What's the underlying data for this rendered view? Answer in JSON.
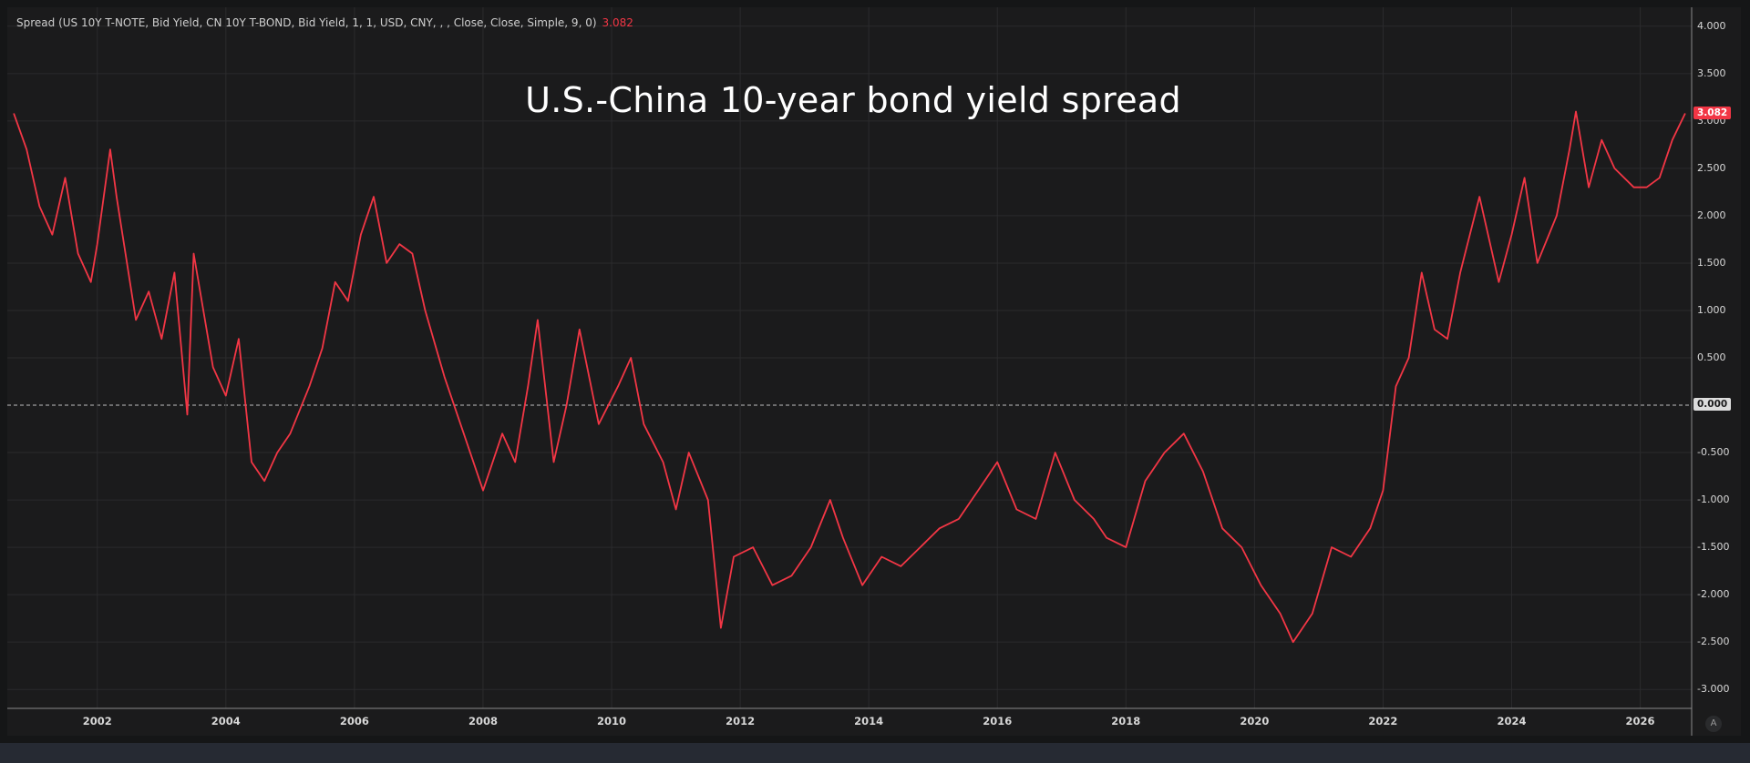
{
  "header": {
    "study_label": "Spread (US 10Y T-NOTE, Bid Yield, CN 10Y T-BOND, Bid Yield, 1, 1, USD, CNY, , , Close, Close, Simple, 9, 0)",
    "last_value": "3.082"
  },
  "badges": {
    "last_value": "3.082",
    "zero_line": "0.000"
  },
  "controls": {
    "auto_scale_label": "A"
  },
  "colors": {
    "series": "#f23645",
    "background": "#1b1b1c",
    "grid": "#2b2b2d",
    "zero_line": "#bfbfbf",
    "text": "#d8d8d8"
  },
  "chart_data": {
    "type": "line",
    "title": "U.S.-China 10-year bond yield spread",
    "xlim": [
      2000.6,
      2026.8
    ],
    "ylim": [
      -3.2,
      4.2
    ],
    "y_ticks": [
      "4.000",
      "3.500",
      "3.000",
      "2.500",
      "2.000",
      "1.500",
      "1.000",
      "0.500",
      "0.000",
      "-0.500",
      "-1.000",
      "-1.500",
      "-2.000",
      "-2.500",
      "-3.000"
    ],
    "x_ticks": [
      "2002",
      "2004",
      "2006",
      "2008",
      "2010",
      "2012",
      "2014",
      "2016",
      "2018",
      "2020",
      "2022",
      "2024",
      "2026"
    ],
    "grid": true,
    "legend": "none",
    "series": [
      {
        "name": "",
        "x": [
          2000.7,
          2000.9,
          2001.1,
          2001.3,
          2001.5,
          2001.7,
          2001.9,
          2002.0,
          2002.2,
          2002.3,
          2002.6,
          2002.8,
          2003.0,
          2003.2,
          2003.4,
          2003.5,
          2003.8,
          2004.0,
          2004.2,
          2004.4,
          2004.6,
          2004.8,
          2005.0,
          2005.3,
          2005.5,
          2005.7,
          2005.9,
          2006.1,
          2006.3,
          2006.5,
          2006.7,
          2006.9,
          2007.1,
          2007.4,
          2007.7,
          2008.0,
          2008.3,
          2008.5,
          2008.7,
          2008.85,
          2009.1,
          2009.3,
          2009.5,
          2009.8,
          2010.1,
          2010.3,
          2010.5,
          2010.8,
          2011.0,
          2011.2,
          2011.5,
          2011.7,
          2011.9,
          2012.2,
          2012.5,
          2012.8,
          2013.1,
          2013.4,
          2013.6,
          2013.9,
          2014.2,
          2014.5,
          2014.8,
          2015.1,
          2015.4,
          2015.7,
          2016.0,
          2016.3,
          2016.6,
          2016.9,
          2017.2,
          2017.5,
          2017.7,
          2018.0,
          2018.3,
          2018.6,
          2018.9,
          2019.2,
          2019.5,
          2019.8,
          2020.1,
          2020.4,
          2020.6,
          2020.9,
          2021.2,
          2021.5,
          2021.8,
          2022.0,
          2022.2,
          2022.4,
          2022.6,
          2022.8,
          2023.0,
          2023.2,
          2023.5,
          2023.8,
          2024.0,
          2024.2,
          2024.4,
          2024.7,
          2024.9,
          2025.0,
          2025.2,
          2025.4,
          2025.6,
          2025.9,
          2026.1,
          2026.3,
          2026.5,
          2026.7
        ],
        "values": [
          3.08,
          2.7,
          2.1,
          1.8,
          2.4,
          1.6,
          1.3,
          1.7,
          2.7,
          2.2,
          0.9,
          1.2,
          0.7,
          1.4,
          -0.1,
          1.6,
          0.4,
          0.1,
          0.7,
          -0.6,
          -0.8,
          -0.5,
          -0.3,
          0.2,
          0.6,
          1.3,
          1.1,
          1.8,
          2.2,
          1.5,
          1.7,
          1.6,
          1.0,
          0.3,
          -0.3,
          -0.9,
          -0.3,
          -0.6,
          0.2,
          0.9,
          -0.6,
          0.0,
          0.8,
          -0.2,
          0.2,
          0.5,
          -0.2,
          -0.6,
          -1.1,
          -0.5,
          -1.0,
          -2.35,
          -1.6,
          -1.5,
          -1.9,
          -1.8,
          -1.5,
          -1.0,
          -1.4,
          -1.9,
          -1.6,
          -1.7,
          -1.5,
          -1.3,
          -1.2,
          -0.9,
          -0.6,
          -1.1,
          -1.2,
          -0.5,
          -1.0,
          -1.2,
          -1.4,
          -1.5,
          -0.8,
          -0.5,
          -0.3,
          -0.7,
          -1.3,
          -1.5,
          -1.9,
          -2.2,
          -2.5,
          -2.2,
          -1.5,
          -1.6,
          -1.3,
          -0.9,
          0.2,
          0.5,
          1.4,
          0.8,
          0.7,
          1.4,
          2.2,
          1.3,
          1.8,
          2.4,
          1.5,
          2.0,
          2.7,
          3.1,
          2.3,
          2.8,
          2.5,
          2.3,
          2.3,
          2.4,
          2.8,
          3.08
        ]
      }
    ]
  }
}
